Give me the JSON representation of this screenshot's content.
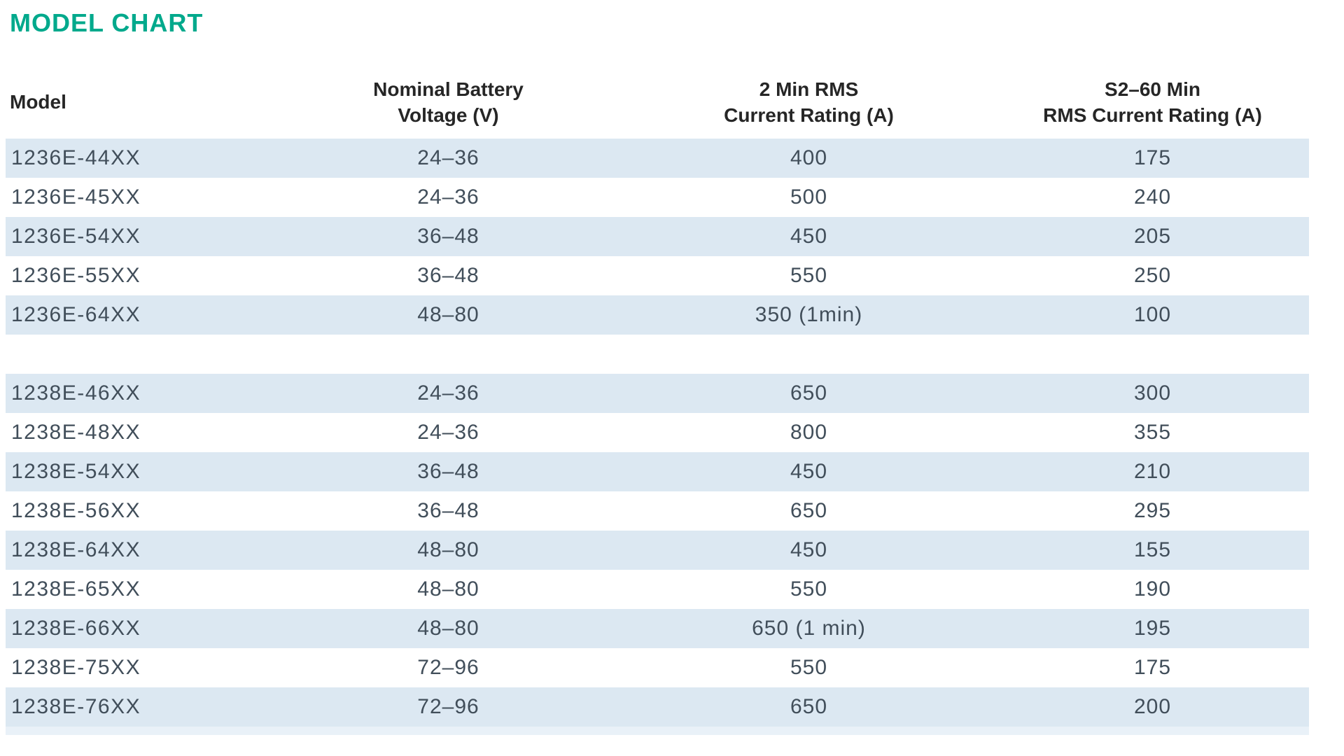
{
  "title": "MODEL CHART",
  "colors": {
    "title_accent": "#00a98c",
    "row_highlight": "#dce8f2",
    "header_text": "#262626",
    "body_text": "#414e5a"
  },
  "table": {
    "headers": {
      "model": "Model",
      "voltage_line1": "Nominal Battery",
      "voltage_line2": "Voltage (V)",
      "rms2_line1": "2 Min RMS",
      "rms2_line2": "Current Rating (A)",
      "s260_line1": "S2–60 Min",
      "s260_line2": "RMS Current Rating (A)"
    },
    "groups": [
      {
        "rows": [
          {
            "model": "1236E-44XX",
            "voltage": "24–36",
            "rms2": "400",
            "s260": "175"
          },
          {
            "model": "1236E-45XX",
            "voltage": "24–36",
            "rms2": "500",
            "s260": "240"
          },
          {
            "model": "1236E-54XX",
            "voltage": "36–48",
            "rms2": "450",
            "s260": "205"
          },
          {
            "model": "1236E-55XX",
            "voltage": "36–48",
            "rms2": "550",
            "s260": "250"
          },
          {
            "model": "1236E-64XX",
            "voltage": "48–80",
            "rms2": "350 (1min)",
            "s260": "100"
          }
        ]
      },
      {
        "rows": [
          {
            "model": "1238E-46XX",
            "voltage": "24–36",
            "rms2": "650",
            "s260": "300"
          },
          {
            "model": "1238E-48XX",
            "voltage": "24–36",
            "rms2": "800",
            "s260": "355"
          },
          {
            "model": "1238E-54XX",
            "voltage": "36–48",
            "rms2": "450",
            "s260": "210"
          },
          {
            "model": "1238E-56XX",
            "voltage": "36–48",
            "rms2": "650",
            "s260": "295"
          },
          {
            "model": "1238E-64XX",
            "voltage": "48–80",
            "rms2": "450",
            "s260": "155"
          },
          {
            "model": "1238E-65XX",
            "voltage": "48–80",
            "rms2": "550",
            "s260": "190"
          },
          {
            "model": "1238E-66XX",
            "voltage": "48–80",
            "rms2": "650 (1 min)",
            "s260": "195"
          },
          {
            "model": "1238E-75XX",
            "voltage": "72–96",
            "rms2": "550",
            "s260": "175"
          },
          {
            "model": "1238E-76XX",
            "voltage": "72–96",
            "rms2": "650",
            "s260": "200"
          }
        ]
      }
    ]
  }
}
